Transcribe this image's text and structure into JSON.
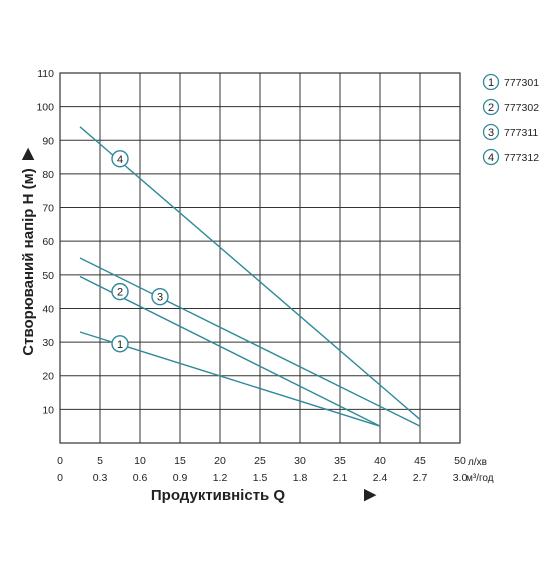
{
  "chart_data": {
    "type": "line",
    "xlabel": "Продуктивність  Q",
    "xlabel_arrow": "▶",
    "ylabel": "Створюваний напір H (м)",
    "ylabel_arrow": "▶",
    "x_unit_primary": "л/хв",
    "x_unit_secondary": "м³/год",
    "x_ticks_primary": [
      "0",
      "5",
      "10",
      "15",
      "20",
      "25",
      "30",
      "35",
      "40",
      "45",
      "50"
    ],
    "x_ticks_secondary": [
      "0",
      "0.3",
      "0.6",
      "0.9",
      "1.2",
      "1.5",
      "1.8",
      "2.1",
      "2.4",
      "2.7",
      "3.0"
    ],
    "y_ticks": [
      "10",
      "20",
      "30",
      "40",
      "50",
      "60",
      "70",
      "80",
      "90",
      "100",
      "110"
    ],
    "xlim": [
      0,
      50
    ],
    "ylim": [
      0,
      110
    ],
    "grid": true,
    "legend_position": "top-right",
    "colors": {
      "series": "#2e8a9a",
      "grid": "#333333",
      "frame": "#333333"
    },
    "series": [
      {
        "name": "777301",
        "marker": "1",
        "x": [
          2.5,
          40
        ],
        "y": [
          33,
          5
        ],
        "marker_at": [
          7.5,
          29.5
        ]
      },
      {
        "name": "777302",
        "marker": "2",
        "x": [
          2.5,
          40
        ],
        "y": [
          49.5,
          5
        ],
        "marker_at": [
          7.5,
          45
        ]
      },
      {
        "name": "777311",
        "marker": "3",
        "x": [
          2.5,
          45
        ],
        "y": [
          55,
          5
        ],
        "marker_at": [
          12.5,
          43.5
        ]
      },
      {
        "name": "777312",
        "marker": "4",
        "x": [
          2.5,
          45
        ],
        "y": [
          94,
          7
        ],
        "marker_at": [
          7.5,
          84.5
        ]
      }
    ]
  }
}
